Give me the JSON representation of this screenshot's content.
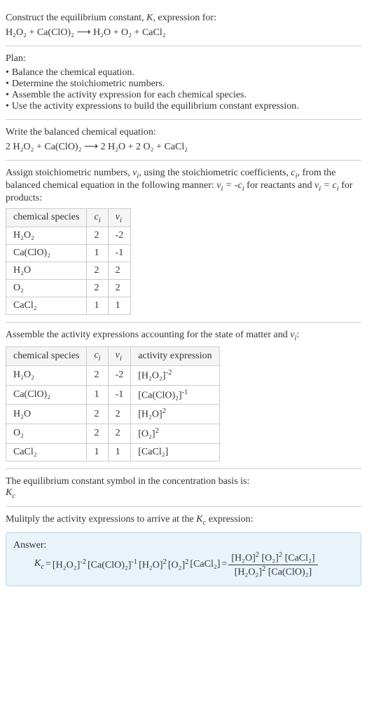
{
  "intro": {
    "text1": "Construct the equilibrium constant, ",
    "text2": ", expression for:",
    "equation_reactants": "H₂O₂ + Ca(ClO)₂",
    "arrow": "⟶",
    "equation_products": "H₂O + O₂ + CaCl₂"
  },
  "plan": {
    "title": "Plan:",
    "items": [
      "Balance the chemical equation.",
      "Determine the stoichiometric numbers.",
      "Assemble the activity expression for each chemical species.",
      "Use the activity expressions to build the equilibrium constant expression."
    ]
  },
  "balanced": {
    "title": "Write the balanced chemical equation:",
    "reactants": "2 H₂O₂ + Ca(ClO)₂",
    "arrow": "⟶",
    "products": "2 H₂O + 2 O₂ + CaCl₂"
  },
  "stoich": {
    "text1": "Assign stoichiometric numbers, ",
    "text2": ", using the stoichiometric coefficients, ",
    "text3": ", from the balanced chemical equation in the following manner: ",
    "text4": " for reactants and ",
    "text5": " for products:",
    "headers": [
      "chemical species",
      "cᵢ",
      "νᵢ"
    ],
    "rows": [
      [
        "H₂O₂",
        "2",
        "-2"
      ],
      [
        "Ca(ClO)₂",
        "1",
        "-1"
      ],
      [
        "H₂O",
        "2",
        "2"
      ],
      [
        "O₂",
        "2",
        "2"
      ],
      [
        "CaCl₂",
        "1",
        "1"
      ]
    ]
  },
  "activity": {
    "title": "Assemble the activity expressions accounting for the state of matter and ",
    "title2": ":",
    "headers": [
      "chemical species",
      "cᵢ",
      "νᵢ",
      "activity expression"
    ],
    "rows": [
      {
        "species": "H₂O₂",
        "c": "2",
        "nu": "-2",
        "expr_base": "[H₂O₂]",
        "expr_sup": "-2"
      },
      {
        "species": "Ca(ClO)₂",
        "c": "1",
        "nu": "-1",
        "expr_base": "[Ca(ClO)₂]",
        "expr_sup": "-1"
      },
      {
        "species": "H₂O",
        "c": "2",
        "nu": "2",
        "expr_base": "[H₂O]",
        "expr_sup": "2"
      },
      {
        "species": "O₂",
        "c": "2",
        "nu": "2",
        "expr_base": "[O₂]",
        "expr_sup": "2"
      },
      {
        "species": "CaCl₂",
        "c": "1",
        "nu": "1",
        "expr_base": "[CaCl₂]",
        "expr_sup": ""
      }
    ]
  },
  "symbol": {
    "text": "The equilibrium constant symbol in the concentration basis is:"
  },
  "multiply": {
    "text1": "Mulitply the activity expressions to arrive at the ",
    "text2": " expression:"
  },
  "answer": {
    "label": "Answer:",
    "terms": [
      {
        "base": "[H₂O₂]",
        "sup": "-2"
      },
      {
        "base": "[Ca(ClO)₂]",
        "sup": "-1"
      },
      {
        "base": "[H₂O]",
        "sup": "2"
      },
      {
        "base": "[O₂]",
        "sup": "2"
      },
      {
        "base": "[CaCl₂]",
        "sup": ""
      }
    ],
    "frac_num": [
      {
        "base": "[H₂O]",
        "sup": "2"
      },
      {
        "base": "[O₂]",
        "sup": "2"
      },
      {
        "base": "[CaCl₂]",
        "sup": ""
      }
    ],
    "frac_den": [
      {
        "base": "[H₂O₂]",
        "sup": "2"
      },
      {
        "base": "[Ca(ClO)₂]",
        "sup": ""
      }
    ]
  },
  "styling": {
    "border_color": "#ccc",
    "answer_bg": "#e8f4fa",
    "answer_border": "#b8d8e8",
    "text_color": "#333",
    "font_size": 14
  }
}
